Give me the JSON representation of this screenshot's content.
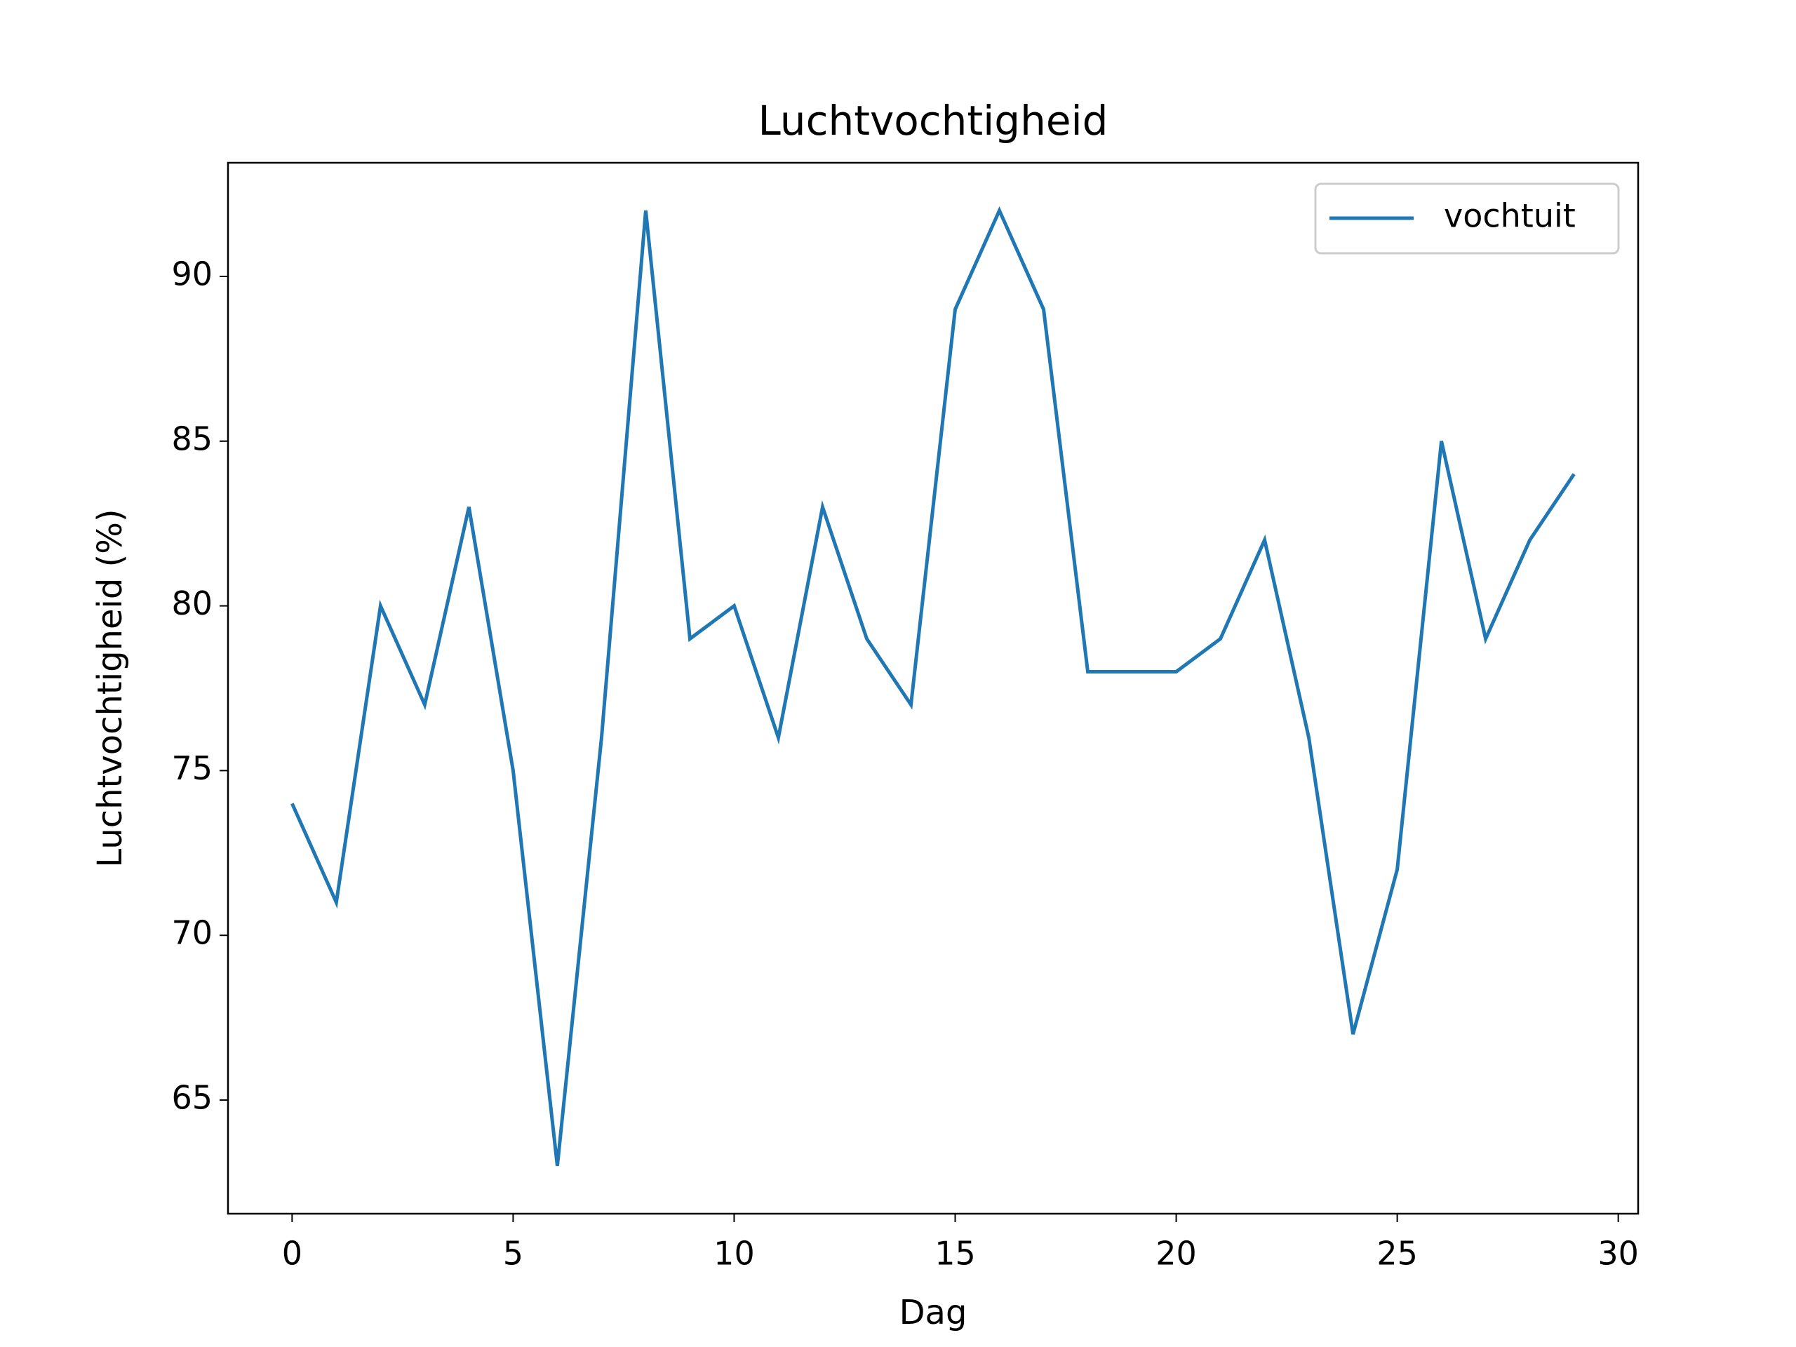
{
  "chart_data": {
    "type": "line",
    "title": "Luchtvochtigheid",
    "xlabel": "Dag",
    "ylabel": "Luchtvochtigheid (%)",
    "x": [
      0,
      1,
      2,
      3,
      4,
      5,
      6,
      7,
      8,
      9,
      10,
      11,
      12,
      13,
      14,
      15,
      16,
      17,
      18,
      19,
      20,
      21,
      22,
      23,
      24,
      25,
      26,
      27,
      28,
      29
    ],
    "series": [
      {
        "name": "vochtuit",
        "color": "#1f77b4",
        "values": [
          74,
          71,
          80,
          77,
          83,
          75,
          63,
          76,
          92,
          79,
          80,
          76,
          83,
          79,
          77,
          89,
          92,
          89,
          78,
          78,
          78,
          79,
          82,
          76,
          67,
          72,
          85,
          79,
          82,
          84
        ]
      }
    ],
    "xlim": [
      -1.45,
      30.45
    ],
    "xticks": [
      0,
      5,
      10,
      15,
      20,
      25,
      30
    ],
    "ylim": [
      61.55,
      93.45
    ],
    "yticks": [
      65,
      70,
      75,
      80,
      85,
      90
    ],
    "grid": false,
    "legend": "upper right"
  }
}
